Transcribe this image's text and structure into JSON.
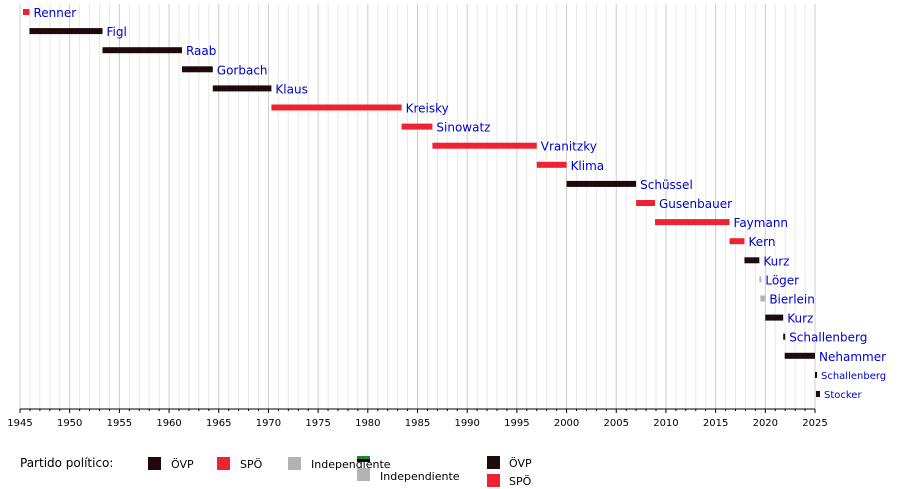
{
  "chart_data": {
    "type": "timeline-bar",
    "xlim": [
      1945,
      2025
    ],
    "x_ticks": [
      "1945",
      "1950",
      "1955",
      "1960",
      "1965",
      "1970",
      "1975",
      "1980",
      "1985",
      "1990",
      "1995",
      "2000",
      "2005",
      "2010",
      "2015",
      "2020",
      "2025"
    ],
    "grid": "vertical, every year",
    "colors": {
      "OVP": "#1f0a0a",
      "SPO": "#ee2233",
      "Independiente": "#b3b3b3",
      "grid_major": "#cccccc",
      "grid_minor": "#e8e8e8",
      "label_link": "#0000cc"
    },
    "rows": [
      {
        "name": "Renner",
        "start": 1945.3,
        "end": 1945.95,
        "party": "SPO"
      },
      {
        "name": "Figl",
        "start": 1945.95,
        "end": 1953.3,
        "party": "OVP"
      },
      {
        "name": "Raab",
        "start": 1953.3,
        "end": 1961.3,
        "party": "OVP"
      },
      {
        "name": "Gorbach",
        "start": 1961.3,
        "end": 1964.4,
        "party": "OVP"
      },
      {
        "name": "Klaus",
        "start": 1964.4,
        "end": 1970.3,
        "party": "OVP"
      },
      {
        "name": "Kreisky",
        "start": 1970.3,
        "end": 1983.4,
        "party": "SPO"
      },
      {
        "name": "Sinowatz",
        "start": 1983.4,
        "end": 1986.5,
        "party": "SPO"
      },
      {
        "name": "Vranitzky",
        "start": 1986.5,
        "end": 1997.0,
        "party": "SPO"
      },
      {
        "name": "Klima",
        "start": 1997.0,
        "end": 2000.0,
        "party": "SPO"
      },
      {
        "name": "Schüssel",
        "start": 2000.0,
        "end": 2007.0,
        "party": "OVP"
      },
      {
        "name": "Gusenbauer",
        "start": 2007.0,
        "end": 2008.9,
        "party": "SPO"
      },
      {
        "name": "Faymann",
        "start": 2008.9,
        "end": 2016.4,
        "party": "SPO"
      },
      {
        "name": "Kern",
        "start": 2016.4,
        "end": 2017.9,
        "party": "SPO"
      },
      {
        "name": "Kurz",
        "start": 2017.9,
        "end": 2019.4,
        "party": "OVP"
      },
      {
        "name": "Löger",
        "start": 2019.4,
        "end": 2019.5,
        "party": "Independiente"
      },
      {
        "name": "Bierlein",
        "start": 2019.5,
        "end": 2020.0,
        "party": "Independiente"
      },
      {
        "name": "Kurz",
        "start": 2020.0,
        "end": 2021.8,
        "party": "OVP"
      },
      {
        "name": "Schallenberg",
        "start": 2021.8,
        "end": 2021.95,
        "party": "OVP"
      },
      {
        "name": "Nehammer",
        "start": 2021.95,
        "end": 2025.0,
        "party": "OVP"
      },
      {
        "name": "Schallenberg",
        "start": 2025.0,
        "end": 2025.1,
        "party": "OVP"
      },
      {
        "name": "Stocker",
        "start": 2025.1,
        "end": 2025.5,
        "party": "OVP"
      }
    ],
    "legend": {
      "title": "Partido político:",
      "row1": [
        {
          "label": "ÖVP",
          "party": "OVP"
        },
        {
          "label": "SPÖ",
          "party": "SPO"
        },
        {
          "label": "Independiente",
          "party": "Independiente"
        }
      ],
      "row2": [
        {
          "label": "Independiente",
          "party": "Independiente"
        },
        {
          "label": "ÖVP",
          "party": "OVP"
        },
        {
          "label": "SPÖ",
          "party": "SPO"
        }
      ]
    }
  }
}
